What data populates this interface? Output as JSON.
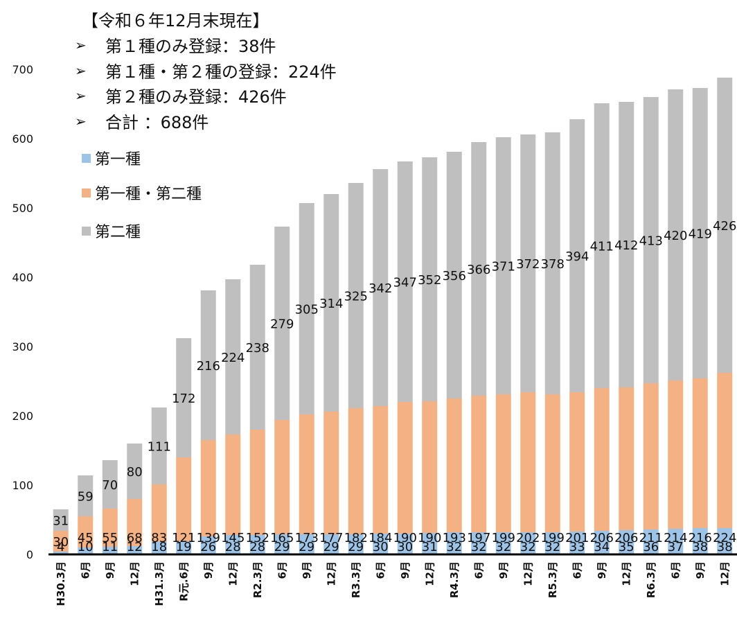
{
  "annotation": {
    "title": "【令和６年12月末現在】",
    "items": [
      "第１種のみ登録：38件",
      "第１種・第２種の登録：224件",
      "第２種のみ登録：426件",
      "合計 ：688件"
    ]
  },
  "chart_data": {
    "type": "bar",
    "stacked": true,
    "title": "",
    "xlabel": "",
    "ylabel": "",
    "ylim": [
      0,
      700
    ],
    "yticks": [
      0,
      100,
      200,
      300,
      400,
      500,
      600,
      700
    ],
    "grid": false,
    "legend_position": "top-left",
    "categories": [
      "H30.3月",
      "6月",
      "9月",
      "12月",
      "H31.3月",
      "R元.6月",
      "9月",
      "12月",
      "R2.3月",
      "6月",
      "9月",
      "12月",
      "R3.3月",
      "6月",
      "9月",
      "12月",
      "R4.3月",
      "6月",
      "9月",
      "12月",
      "R5.3月",
      "6月",
      "9月",
      "12月",
      "R6.3月",
      "6月",
      "9月",
      "12月"
    ],
    "series": [
      {
        "name": "第一種",
        "color": "#9dc3e6",
        "values": [
          4,
          10,
          11,
          12,
          18,
          19,
          26,
          28,
          28,
          29,
          29,
          29,
          29,
          30,
          30,
          31,
          32,
          32,
          32,
          32,
          32,
          33,
          34,
          35,
          36,
          37,
          38,
          38
        ]
      },
      {
        "name": "第一種・第二種",
        "color": "#f4b183",
        "values": [
          30,
          45,
          55,
          68,
          83,
          121,
          139,
          145,
          152,
          165,
          173,
          177,
          182,
          184,
          190,
          190,
          193,
          197,
          199,
          202,
          199,
          201,
          206,
          206,
          211,
          214,
          216,
          224
        ]
      },
      {
        "name": "第二種",
        "color": "#bfbfbf",
        "values": [
          31,
          59,
          70,
          80,
          111,
          172,
          216,
          224,
          238,
          279,
          305,
          314,
          325,
          342,
          347,
          352,
          356,
          366,
          371,
          372,
          378,
          394,
          411,
          412,
          413,
          420,
          419,
          426
        ]
      }
    ]
  }
}
